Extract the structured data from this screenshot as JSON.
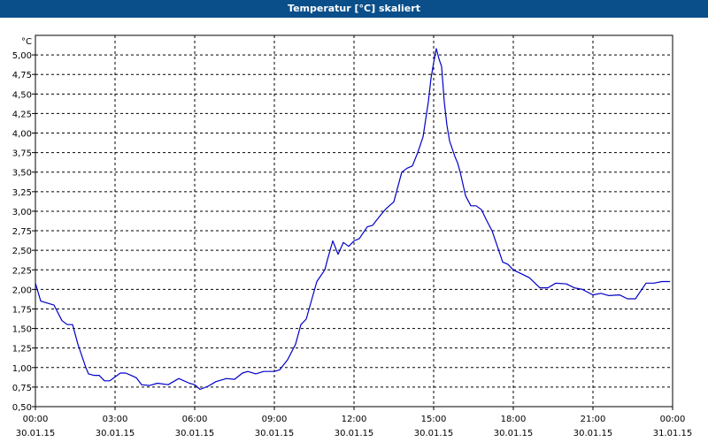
{
  "window": {
    "title": "Temperatur [°C] skaliert"
  },
  "chart_data": {
    "type": "line",
    "title": "Temperatur [°C] skaliert",
    "ylabel": "°C",
    "xlabel": "",
    "ylim": [
      0.5,
      5.25
    ],
    "xlim": [
      0,
      24
    ],
    "grid": true,
    "legend": "none",
    "colors": {
      "line": "#0000c8",
      "grid": "#000000",
      "background": "#ffffff",
      "titlebar": "#0a4f8a"
    },
    "y_ticks": [
      "0,50",
      "0,75",
      "1,00",
      "1,25",
      "1,50",
      "1,75",
      "2,00",
      "2,25",
      "2,50",
      "2,75",
      "3,00",
      "3,25",
      "3,50",
      "3,75",
      "4,00",
      "4,25",
      "4,50",
      "4,75",
      "5,00"
    ],
    "y_tick_values": [
      0.5,
      0.75,
      1.0,
      1.25,
      1.5,
      1.75,
      2.0,
      2.25,
      2.5,
      2.75,
      3.0,
      3.25,
      3.5,
      3.75,
      4.0,
      4.25,
      4.5,
      4.75,
      5.0
    ],
    "x_ticks": [
      {
        "time": "00:00",
        "date": "30.01.15"
      },
      {
        "time": "03:00",
        "date": "30.01.15"
      },
      {
        "time": "06:00",
        "date": "30.01.15"
      },
      {
        "time": "09:00",
        "date": "30.01.15"
      },
      {
        "time": "12:00",
        "date": "30.01.15"
      },
      {
        "time": "15:00",
        "date": "30.01.15"
      },
      {
        "time": "18:00",
        "date": "30.01.15"
      },
      {
        "time": "21:00",
        "date": "30.01.15"
      },
      {
        "time": "00:00",
        "date": "31.01.15"
      }
    ],
    "x_tick_values": [
      0,
      3,
      6,
      9,
      12,
      15,
      18,
      21,
      24
    ],
    "series": [
      {
        "x": [
          0,
          0.2,
          0.4,
          0.7,
          1.0,
          1.2,
          1.4,
          1.6,
          1.9,
          2.0,
          2.2,
          2.4,
          2.6,
          2.8,
          3.0,
          3.2,
          3.4,
          3.6,
          3.8,
          4.0,
          4.3,
          4.6,
          5.0,
          5.4,
          5.8,
          6.0,
          6.2,
          6.5,
          6.8,
          7.2,
          7.5,
          7.8,
          8.0,
          8.3,
          8.6,
          8.9,
          9.0,
          9.2,
          9.5,
          9.8,
          10.0,
          10.2,
          10.6,
          10.9,
          11.0,
          11.2,
          11.4,
          11.6,
          11.8,
          12.0,
          12.2,
          12.5,
          12.7,
          13.0,
          13.2,
          13.5,
          13.8,
          14.0,
          14.2,
          14.4,
          14.6,
          14.8,
          14.9,
          15.0,
          15.1,
          15.2,
          15.3,
          15.4,
          15.5,
          15.6,
          15.7,
          15.8,
          15.9,
          16.0,
          16.2,
          16.4,
          16.6,
          16.8,
          17.0,
          17.2,
          17.4,
          17.6,
          17.8,
          18.0,
          18.3,
          18.6,
          19.0,
          19.3,
          19.6,
          20.0,
          20.3,
          20.6,
          21.0,
          21.3,
          21.6,
          22.0,
          22.3,
          22.6,
          23.0,
          23.3,
          23.6,
          23.9
        ],
        "y": [
          2.08,
          1.85,
          1.83,
          1.8,
          1.6,
          1.55,
          1.55,
          1.3,
          1.0,
          0.92,
          0.9,
          0.9,
          0.83,
          0.83,
          0.88,
          0.93,
          0.93,
          0.9,
          0.87,
          0.78,
          0.77,
          0.8,
          0.78,
          0.86,
          0.8,
          0.78,
          0.72,
          0.76,
          0.82,
          0.86,
          0.85,
          0.93,
          0.95,
          0.92,
          0.95,
          0.95,
          0.95,
          0.97,
          1.1,
          1.3,
          1.55,
          1.62,
          2.1,
          2.25,
          2.38,
          2.62,
          2.45,
          2.6,
          2.55,
          2.62,
          2.65,
          2.8,
          2.82,
          2.95,
          3.03,
          3.12,
          3.5,
          3.55,
          3.58,
          3.75,
          3.95,
          4.4,
          4.7,
          4.9,
          5.08,
          4.95,
          4.85,
          4.4,
          4.1,
          3.9,
          3.8,
          3.7,
          3.62,
          3.5,
          3.2,
          3.07,
          3.07,
          3.02,
          2.88,
          2.75,
          2.55,
          2.35,
          2.32,
          2.25,
          2.2,
          2.15,
          2.02,
          2.02,
          2.08,
          2.07,
          2.02,
          2.0,
          1.93,
          1.95,
          1.92,
          1.93,
          1.88,
          1.88,
          2.08,
          2.08,
          2.1,
          2.1
        ]
      }
    ]
  }
}
